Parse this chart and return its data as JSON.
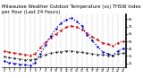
{
  "title": "Milwaukee Weather Outdoor Temperature (vs) THSW Index per Hour (Last 24 Hours)",
  "hours": [
    0,
    1,
    2,
    3,
    4,
    5,
    6,
    7,
    8,
    9,
    10,
    11,
    12,
    13,
    14,
    15,
    16,
    17,
    18,
    19,
    20,
    21,
    22,
    23
  ],
  "temp": [
    42,
    40,
    39,
    38,
    37,
    36,
    38,
    46,
    54,
    60,
    65,
    70,
    74,
    76,
    74,
    71,
    66,
    61,
    57,
    53,
    51,
    49,
    53,
    55
  ],
  "thsw": [
    28,
    26,
    25,
    24,
    23,
    22,
    26,
    38,
    50,
    62,
    72,
    80,
    84,
    87,
    82,
    76,
    64,
    56,
    48,
    41,
    38,
    36,
    42,
    45
  ],
  "dew": [
    34,
    33,
    32,
    31,
    30,
    30,
    31,
    34,
    37,
    39,
    40,
    41,
    42,
    42,
    41,
    40,
    39,
    38,
    37,
    37,
    36,
    36,
    38,
    39
  ],
  "temp_color": "#cc0000",
  "thsw_color": "#0000cc",
  "dew_color": "#111111",
  "bg_color": "#ffffff",
  "grid_color": "#999999",
  "ylim": [
    20,
    92
  ],
  "ytick_values": [
    25,
    35,
    45,
    55,
    65,
    75,
    85
  ],
  "ytick_labels": [
    "25",
    "35",
    "45",
    "55",
    "65",
    "75",
    "85"
  ],
  "title_fontsize": 3.8,
  "tick_fontsize": 2.2,
  "ytick_fontsize": 2.5
}
